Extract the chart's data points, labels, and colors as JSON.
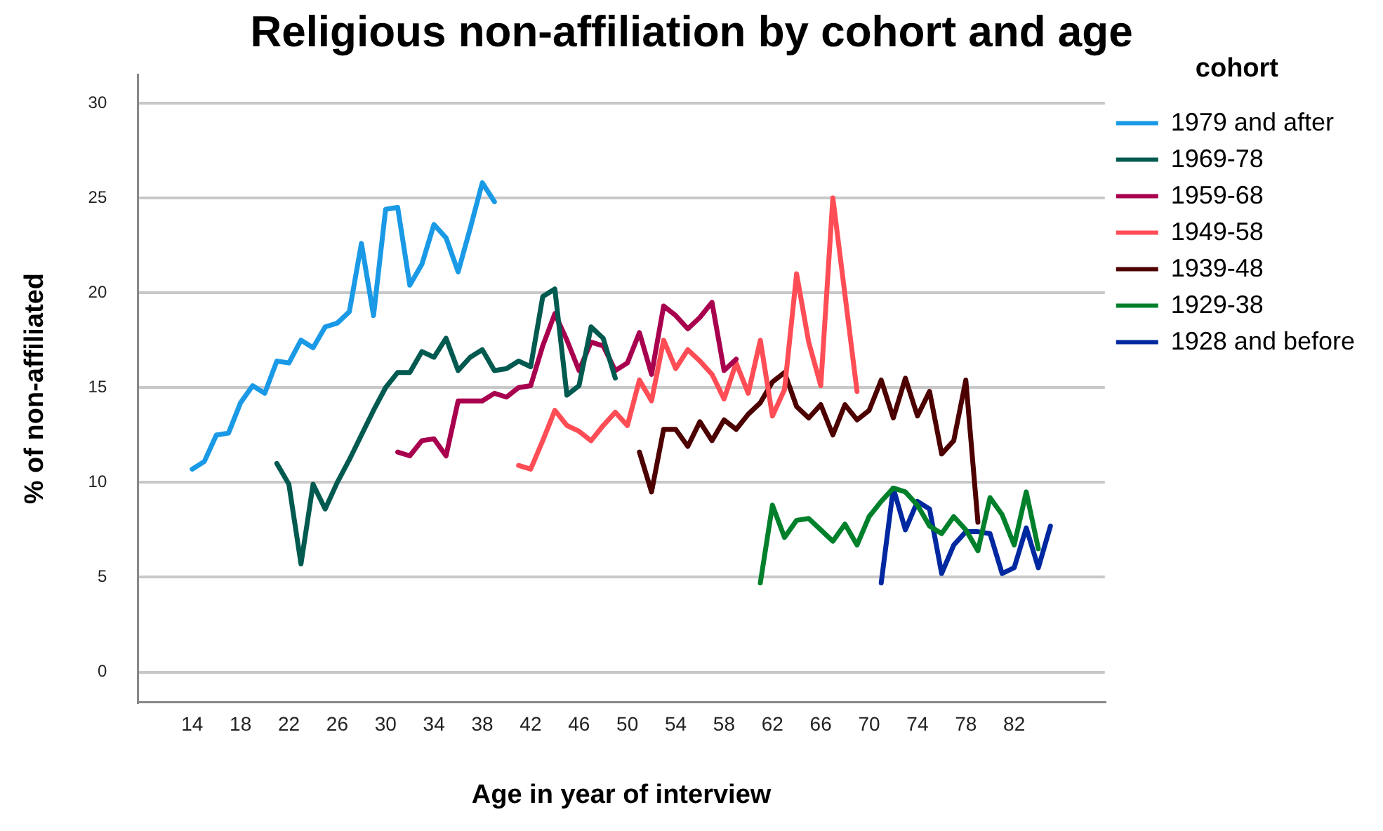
{
  "chart_data": {
    "type": "line",
    "title": "Religious non-affiliation by cohort and age",
    "xlabel": "Age in year of interview",
    "ylabel": "% of non-affiliated",
    "legend_title": "cohort",
    "legend": "right",
    "grid": "y",
    "marker": "none",
    "line_style": "solid",
    "xlim": [
      9.5,
      89.5
    ],
    "xticks": [
      14,
      18,
      22,
      26,
      30,
      34,
      38,
      42,
      46,
      50,
      54,
      58,
      62,
      66,
      70,
      74,
      78,
      82
    ],
    "ylim": [
      -1.6,
      31.5
    ],
    "yticks": [
      0,
      5,
      10,
      15,
      20,
      25,
      30
    ],
    "series": [
      {
        "name": "1979 and after",
        "color": "#1a9ae6",
        "x": [
          14,
          15,
          16,
          17,
          18,
          19,
          20,
          21,
          22,
          23,
          24,
          25,
          26,
          27,
          28,
          29,
          30,
          31,
          32,
          33,
          34,
          35,
          36,
          37,
          38,
          39
        ],
        "values": [
          10.7,
          11.1,
          12.5,
          12.6,
          14.2,
          15.1,
          14.7,
          16.4,
          16.3,
          17.5,
          17.1,
          18.2,
          18.4,
          19.0,
          22.6,
          18.8,
          24.4,
          24.5,
          20.4,
          21.5,
          23.6,
          22.9,
          21.1,
          23.4,
          25.8,
          24.8
        ]
      },
      {
        "name": "1969-78",
        "color": "#005a50",
        "x": [
          21,
          22,
          23,
          24,
          25,
          26,
          27,
          28,
          29,
          30,
          31,
          32,
          33,
          34,
          35,
          36,
          37,
          38,
          39,
          40,
          41,
          42,
          43,
          44,
          45,
          46,
          47,
          48,
          49
        ],
        "values": [
          11.0,
          9.9,
          5.7,
          9.9,
          8.6,
          10.0,
          11.2,
          12.5,
          13.8,
          15.0,
          15.8,
          15.8,
          16.9,
          16.6,
          17.6,
          15.9,
          16.6,
          17.0,
          15.9,
          16.0,
          16.4,
          16.1,
          19.8,
          20.2,
          14.6,
          15.1,
          18.2,
          17.6,
          15.5
        ]
      },
      {
        "name": "1959-68",
        "color": "#a8004e",
        "x": [
          31,
          32,
          33,
          34,
          35,
          36,
          37,
          38,
          39,
          40,
          41,
          42,
          43,
          44,
          45,
          46,
          47,
          48,
          49,
          50,
          51,
          52,
          53,
          54,
          55,
          56,
          57,
          58,
          59
        ],
        "values": [
          11.6,
          11.4,
          12.2,
          12.3,
          11.4,
          14.3,
          14.3,
          14.3,
          14.7,
          14.5,
          15.0,
          15.1,
          17.2,
          18.9,
          17.5,
          15.9,
          17.4,
          17.2,
          15.9,
          16.3,
          17.9,
          15.7,
          19.3,
          18.8,
          18.1,
          18.7,
          19.5,
          15.9,
          16.5
        ]
      },
      {
        "name": "1949-58",
        "color": "#ff4d55",
        "x": [
          41,
          42,
          43,
          44,
          45,
          46,
          47,
          48,
          49,
          50,
          51,
          52,
          53,
          54,
          55,
          56,
          57,
          58,
          59,
          60,
          61,
          62,
          63,
          64,
          65,
          66,
          67,
          68,
          69
        ],
        "values": [
          10.9,
          10.7,
          12.2,
          13.8,
          13.0,
          12.7,
          12.2,
          13.0,
          13.7,
          13.0,
          15.4,
          14.3,
          17.5,
          16.0,
          17.0,
          16.4,
          15.7,
          14.4,
          16.3,
          14.7,
          17.5,
          13.5,
          14.9,
          21.0,
          17.4,
          15.1,
          25.0,
          19.9,
          14.8
        ]
      },
      {
        "name": "1939-48",
        "color": "#4d0000",
        "x": [
          51,
          52,
          53,
          54,
          55,
          56,
          57,
          58,
          59,
          60,
          61,
          62,
          63,
          64,
          65,
          66,
          67,
          68,
          69,
          70,
          71,
          72,
          73,
          74,
          75,
          76,
          77,
          78,
          79
        ],
        "values": [
          11.6,
          9.5,
          12.8,
          12.8,
          11.9,
          13.2,
          12.2,
          13.3,
          12.8,
          13.6,
          14.2,
          15.3,
          15.8,
          14.0,
          13.4,
          14.1,
          12.5,
          14.1,
          13.3,
          13.8,
          15.4,
          13.4,
          15.5,
          13.5,
          14.8,
          11.5,
          12.2,
          15.4,
          7.9
        ]
      },
      {
        "name": "1929-38",
        "color": "#00802b",
        "x": [
          61,
          62,
          63,
          64,
          65,
          66,
          67,
          68,
          69,
          70,
          71,
          72,
          73,
          74,
          75,
          76,
          77,
          78,
          79,
          80,
          81,
          82,
          83,
          84
        ],
        "values": [
          4.7,
          8.8,
          7.1,
          8.0,
          8.1,
          7.5,
          6.9,
          7.8,
          6.7,
          8.2,
          9.0,
          9.7,
          9.5,
          8.8,
          7.7,
          7.3,
          8.2,
          7.5,
          6.4,
          9.2,
          8.3,
          6.7,
          9.5,
          6.5
        ]
      },
      {
        "name": "1928 and before",
        "color": "#0028a0",
        "x": [
          71,
          72,
          73,
          74,
          75,
          76,
          77,
          78,
          79,
          80,
          81,
          82,
          83,
          84,
          85
        ],
        "values": [
          4.7,
          9.7,
          7.5,
          9.0,
          8.6,
          5.2,
          6.7,
          7.4,
          7.4,
          7.3,
          5.2,
          5.5,
          7.6,
          5.5,
          7.7
        ]
      }
    ]
  }
}
